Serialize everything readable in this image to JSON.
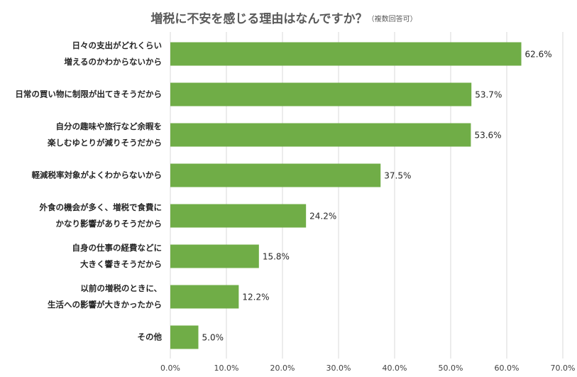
{
  "chart_data": {
    "type": "hbar",
    "title": "増税に不安を感じる理由はなんですか？",
    "subtitle": "（複数回答可）",
    "categories": [
      "日々の支出がどれくらい\n増えるのかわからないから",
      "日常の買い物に制限が出てきそうだから",
      "自分の趣味や旅行など余暇を\n楽しむゆとりが減りそうだから",
      "軽減税率対象がよくわからないから",
      "外食の機会が多く、増税で食費に\nかなり影響がありそうだから",
      "自身の仕事の経費などに\n大きく響きそうだから",
      "以前の増税のときに、\n生活への影響が大きかったから",
      "その他"
    ],
    "values": [
      62.6,
      53.7,
      53.6,
      37.5,
      24.2,
      15.8,
      12.2,
      5.0
    ],
    "value_labels": [
      "62.6%",
      "53.7%",
      "53.6%",
      "37.5%",
      "24.2%",
      "15.8%",
      "12.2%",
      "5.0%"
    ],
    "color": "#70ad47",
    "xlim": [
      0,
      70
    ],
    "xticks": [
      {
        "value": 0,
        "label": "0.0%"
      },
      {
        "value": 10,
        "label": "10.0%"
      },
      {
        "value": 20,
        "label": "20.0%"
      },
      {
        "value": 30,
        "label": "30.0%"
      },
      {
        "value": 40,
        "label": "40.0%"
      },
      {
        "value": 50,
        "label": "50.0%"
      },
      {
        "value": 60,
        "label": "60.0%"
      },
      {
        "value": 70,
        "label": "70.0%"
      }
    ],
    "grid": true
  }
}
